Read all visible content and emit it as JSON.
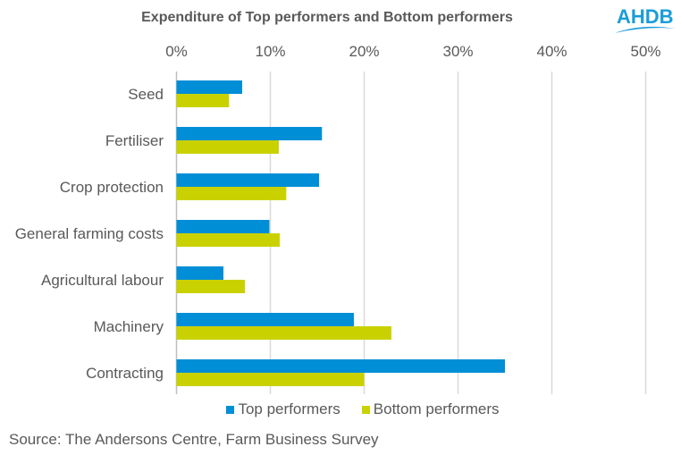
{
  "logo": "AHDB",
  "colors": {
    "top": "#008ED6",
    "bottom": "#C9D200",
    "grid": "#D9D9D9",
    "brand": "#1A9CD8"
  },
  "source": "Source: The Andersons Centre, Farm Business Survey",
  "chart_data": {
    "type": "bar",
    "orientation": "horizontal",
    "title": "Expenditure of Top performers and Bottom performers",
    "categories": [
      "Seed",
      "Fertiliser",
      "Crop protection",
      "General farming costs",
      "Agricultural labour",
      "Machinery",
      "Contracting"
    ],
    "series": [
      {
        "name": "Top performers",
        "values": [
          7.0,
          15.5,
          15.2,
          9.9,
          5.0,
          18.9,
          35.0
        ]
      },
      {
        "name": "Bottom performers",
        "values": [
          5.6,
          10.9,
          11.7,
          11.0,
          7.3,
          22.9,
          20.0
        ]
      }
    ],
    "xlim": [
      0,
      50
    ],
    "xticks": [
      "0%",
      "10%",
      "20%",
      "30%",
      "40%",
      "50%"
    ],
    "grid": true,
    "legend": "bottom",
    "xaxis_position": "top"
  }
}
